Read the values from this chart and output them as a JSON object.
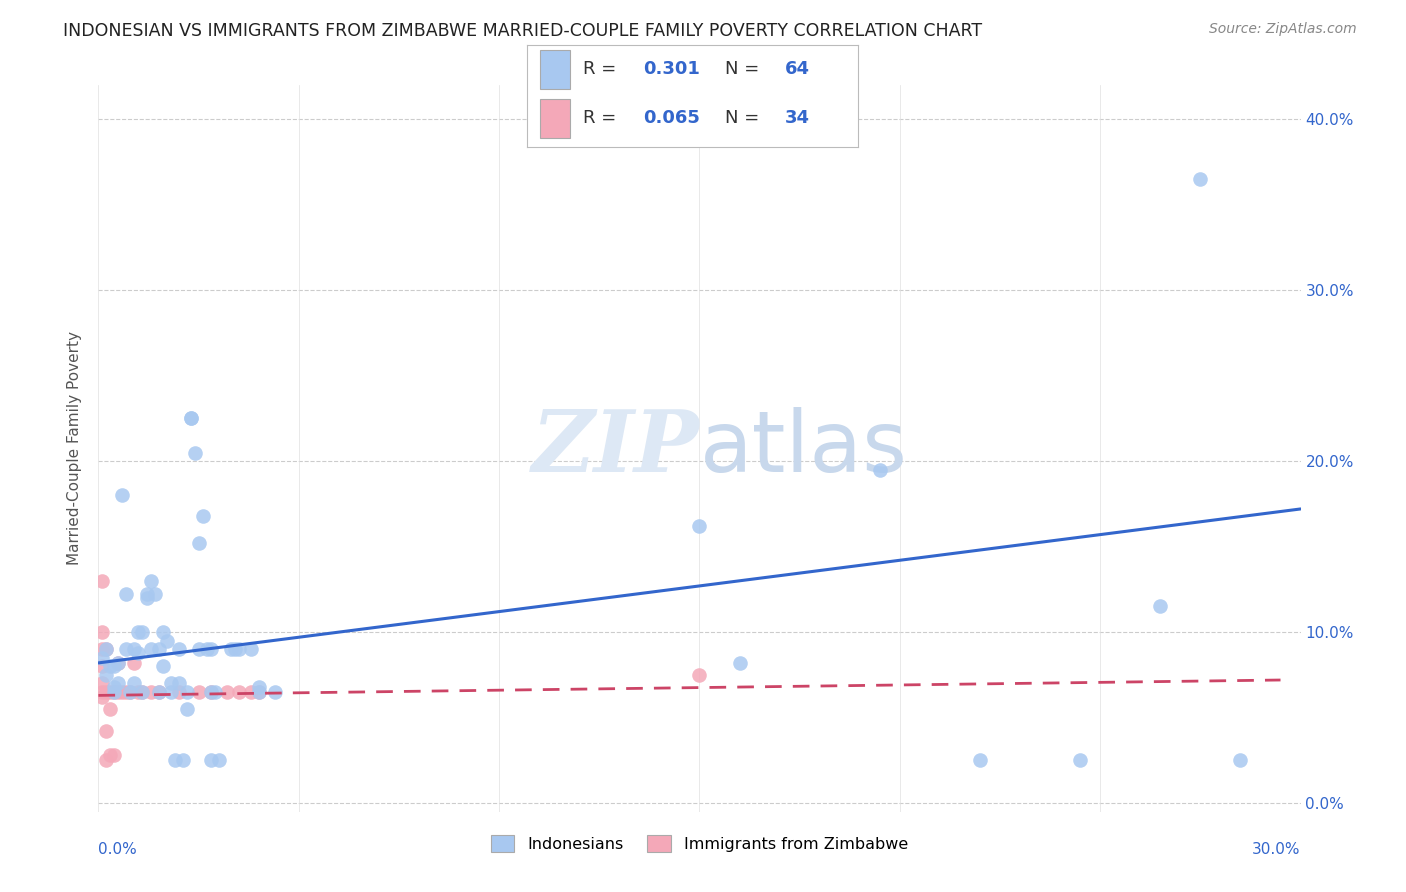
{
  "title": "INDONESIAN VS IMMIGRANTS FROM ZIMBABWE MARRIED-COUPLE FAMILY POVERTY CORRELATION CHART",
  "source": "Source: ZipAtlas.com",
  "ylabel": "Married-Couple Family Poverty",
  "legend1_r": "0.301",
  "legend1_n": "64",
  "legend2_r": "0.065",
  "legend2_n": "34",
  "legend_label1": "Indonesians",
  "legend_label2": "Immigrants from Zimbabwe",
  "blue_color": "#a8c8f0",
  "pink_color": "#f4a8b8",
  "blue_line_color": "#3366cc",
  "pink_line_color": "#cc4466",
  "text_color": "#3366cc",
  "blue_scatter": [
    [
      0.001,
      0.085
    ],
    [
      0.002,
      0.075
    ],
    [
      0.002,
      0.09
    ],
    [
      0.003,
      0.08
    ],
    [
      0.004,
      0.08
    ],
    [
      0.004,
      0.065
    ],
    [
      0.004,
      0.068
    ],
    [
      0.005,
      0.07
    ],
    [
      0.005,
      0.082
    ],
    [
      0.006,
      0.18
    ],
    [
      0.007,
      0.122
    ],
    [
      0.007,
      0.09
    ],
    [
      0.008,
      0.065
    ],
    [
      0.009,
      0.07
    ],
    [
      0.009,
      0.09
    ],
    [
      0.01,
      0.1
    ],
    [
      0.01,
      0.088
    ],
    [
      0.011,
      0.1
    ],
    [
      0.011,
      0.065
    ],
    [
      0.012,
      0.12
    ],
    [
      0.012,
      0.122
    ],
    [
      0.013,
      0.13
    ],
    [
      0.013,
      0.09
    ],
    [
      0.014,
      0.122
    ],
    [
      0.015,
      0.09
    ],
    [
      0.015,
      0.065
    ],
    [
      0.016,
      0.1
    ],
    [
      0.016,
      0.08
    ],
    [
      0.017,
      0.095
    ],
    [
      0.018,
      0.07
    ],
    [
      0.018,
      0.065
    ],
    [
      0.019,
      0.025
    ],
    [
      0.02,
      0.09
    ],
    [
      0.02,
      0.07
    ],
    [
      0.021,
      0.025
    ],
    [
      0.022,
      0.065
    ],
    [
      0.022,
      0.055
    ],
    [
      0.023,
      0.225
    ],
    [
      0.023,
      0.225
    ],
    [
      0.024,
      0.205
    ],
    [
      0.025,
      0.152
    ],
    [
      0.025,
      0.09
    ],
    [
      0.026,
      0.168
    ],
    [
      0.027,
      0.09
    ],
    [
      0.028,
      0.09
    ],
    [
      0.028,
      0.065
    ],
    [
      0.028,
      0.025
    ],
    [
      0.029,
      0.065
    ],
    [
      0.03,
      0.025
    ],
    [
      0.033,
      0.09
    ],
    [
      0.034,
      0.09
    ],
    [
      0.035,
      0.09
    ],
    [
      0.038,
      0.09
    ],
    [
      0.04,
      0.065
    ],
    [
      0.04,
      0.068
    ],
    [
      0.044,
      0.065
    ],
    [
      0.15,
      0.162
    ],
    [
      0.16,
      0.082
    ],
    [
      0.195,
      0.195
    ],
    [
      0.22,
      0.025
    ],
    [
      0.245,
      0.025
    ],
    [
      0.265,
      0.115
    ],
    [
      0.275,
      0.365
    ],
    [
      0.285,
      0.025
    ]
  ],
  "pink_scatter": [
    [
      0.001,
      0.13
    ],
    [
      0.001,
      0.1
    ],
    [
      0.001,
      0.09
    ],
    [
      0.001,
      0.08
    ],
    [
      0.001,
      0.07
    ],
    [
      0.001,
      0.065
    ],
    [
      0.001,
      0.062
    ],
    [
      0.002,
      0.09
    ],
    [
      0.002,
      0.065
    ],
    [
      0.002,
      0.042
    ],
    [
      0.002,
      0.025
    ],
    [
      0.003,
      0.065
    ],
    [
      0.003,
      0.055
    ],
    [
      0.003,
      0.028
    ],
    [
      0.004,
      0.065
    ],
    [
      0.004,
      0.028
    ],
    [
      0.005,
      0.082
    ],
    [
      0.005,
      0.065
    ],
    [
      0.006,
      0.065
    ],
    [
      0.007,
      0.065
    ],
    [
      0.008,
      0.065
    ],
    [
      0.009,
      0.082
    ],
    [
      0.01,
      0.065
    ],
    [
      0.011,
      0.065
    ],
    [
      0.013,
      0.065
    ],
    [
      0.015,
      0.065
    ],
    [
      0.02,
      0.065
    ],
    [
      0.025,
      0.065
    ],
    [
      0.028,
      0.065
    ],
    [
      0.032,
      0.065
    ],
    [
      0.035,
      0.065
    ],
    [
      0.038,
      0.065
    ],
    [
      0.04,
      0.065
    ],
    [
      0.15,
      0.075
    ]
  ],
  "xlim": [
    0.0,
    0.3
  ],
  "ylim": [
    -0.005,
    0.42
  ],
  "ygrid_lines": [
    0.0,
    0.1,
    0.2,
    0.3,
    0.4
  ],
  "xgrid_ticks": [
    0.0,
    0.05,
    0.1,
    0.15,
    0.2,
    0.25,
    0.3
  ],
  "blue_regression": [
    0.0,
    0.3,
    0.082,
    0.172
  ],
  "pink_regression": [
    0.0,
    0.295,
    0.063,
    0.072
  ]
}
